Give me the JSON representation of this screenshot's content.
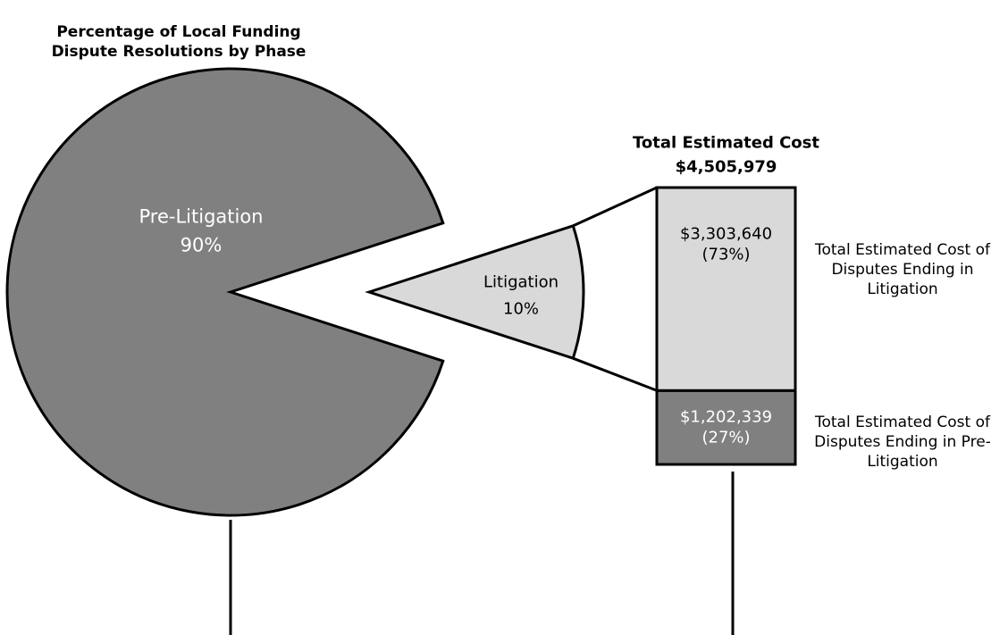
{
  "chart_data": [
    {
      "type": "pie",
      "title": "Percentage of Local Funding Dispute Resolutions by Phase",
      "categories": [
        "Pre-Litigation",
        "Litigation"
      ],
      "values": [
        90,
        10
      ],
      "value_labels": [
        "90%",
        "10%"
      ],
      "colors": [
        "#808080",
        "#d9d9d9"
      ]
    },
    {
      "type": "stacked-bar",
      "title": "Total Estimated Cost",
      "subtitle": "$4,505,979",
      "series": [
        {
          "name": "Total Estimated Cost of Disputes Ending in Pre-Litigation",
          "color": "#808080",
          "values": [
            1202339
          ],
          "value_labels": [
            "$1,202,339\n(27%)"
          ]
        },
        {
          "name": "Total Estimated Cost of Disputes Ending in Litigation",
          "color": "#d9d9d9",
          "values": [
            3303640
          ],
          "value_labels": [
            "$3,303,640\n(73%)"
          ]
        }
      ]
    }
  ]
}
